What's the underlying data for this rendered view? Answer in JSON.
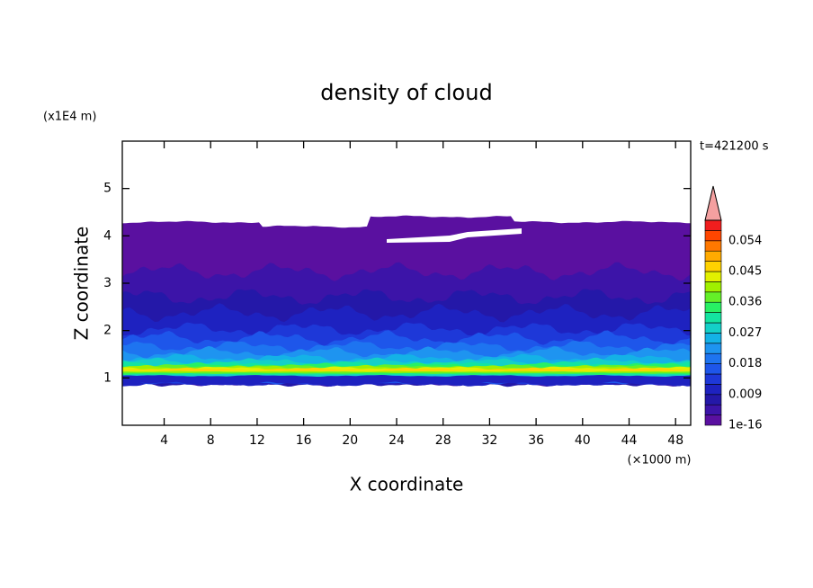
{
  "chart_data": {
    "type": "contour",
    "title": "density of cloud",
    "x_label": "X coordinate",
    "y_label": "Z coordinate",
    "x_unit": "(×1000 m)",
    "y_unit": "(x1E4 m)",
    "annotation": "t=421200 s",
    "xlim": [
      0.4,
      49.3
    ],
    "ylim": [
      0,
      6
    ],
    "xticks": [
      4,
      8,
      12,
      16,
      20,
      24,
      28,
      32,
      36,
      40,
      44,
      48
    ],
    "yticks": [
      1,
      2,
      3,
      4,
      5
    ],
    "colorbar": {
      "levels": [
        1e-16,
        0.003,
        0.006,
        0.009,
        0.012,
        0.015,
        0.018,
        0.021,
        0.024,
        0.027,
        0.03,
        0.033,
        0.036,
        0.039,
        0.042,
        0.045,
        0.048,
        0.051,
        0.054,
        0.057,
        0.06
      ],
      "ticks": [
        {
          "value": 1e-16,
          "label": "1e-16"
        },
        0.009,
        0.018,
        0.027,
        0.036,
        0.045,
        0.054
      ],
      "colors": [
        "#5a10a0",
        "#3c14a8",
        "#2418a8",
        "#1e22c0",
        "#1e38d8",
        "#1e56ea",
        "#1e74f0",
        "#1e94f0",
        "#14b2e6",
        "#14d0c8",
        "#14e4a0",
        "#28f064",
        "#64f028",
        "#a0f000",
        "#e2f000",
        "#ffd200",
        "#ffaa00",
        "#ff7800",
        "#ff4600",
        "#f01e1e"
      ],
      "extend_color": "#f4a0a0"
    }
  }
}
